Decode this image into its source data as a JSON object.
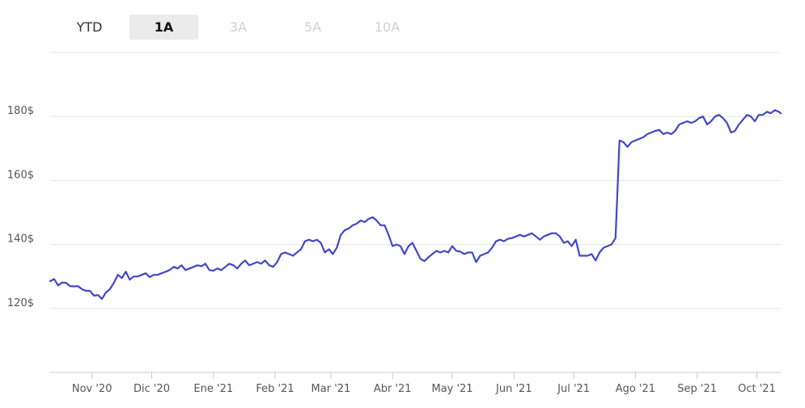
{
  "range_selector": {
    "buttons": [
      {
        "label": "YTD",
        "state": "enabled"
      },
      {
        "label": "1A",
        "state": "active"
      },
      {
        "label": "3A",
        "state": "disabled"
      },
      {
        "label": "5A",
        "state": "disabled"
      },
      {
        "label": "10A",
        "state": "disabled"
      }
    ]
  },
  "chart_data": {
    "type": "line",
    "title": "",
    "xlabel": "",
    "ylabel": "",
    "grid": true,
    "line_color": "#4347c4",
    "ylim": [
      100,
      200
    ],
    "y_ticks": [
      {
        "value": 120,
        "label": "120$"
      },
      {
        "value": 140,
        "label": "140$"
      },
      {
        "value": 160,
        "label": "160$"
      },
      {
        "value": 180,
        "label": "180$"
      }
    ],
    "x_ticks": [
      {
        "date": "2020-11-01",
        "label": "Nov '20"
      },
      {
        "date": "2020-12-01",
        "label": "Dic '20"
      },
      {
        "date": "2021-01-01",
        "label": "Ene '21"
      },
      {
        "date": "2021-02-01",
        "label": "Feb '21"
      },
      {
        "date": "2021-03-01",
        "label": "Mar '21"
      },
      {
        "date": "2021-04-01",
        "label": "Abr '21"
      },
      {
        "date": "2021-05-01",
        "label": "May '21"
      },
      {
        "date": "2021-06-01",
        "label": "Jun '21"
      },
      {
        "date": "2021-07-01",
        "label": "Jul '21"
      },
      {
        "date": "2021-08-01",
        "label": "Ago '21"
      },
      {
        "date": "2021-09-01",
        "label": "Sep '21"
      },
      {
        "date": "2021-10-01",
        "label": "Oct '21"
      }
    ],
    "xlim": [
      "2020-10-11",
      "2021-10-13"
    ],
    "series": [
      {
        "points": [
          [
            "2020-10-11",
            128.5
          ],
          [
            "2020-10-13",
            129.2
          ],
          [
            "2020-10-15",
            127.2
          ],
          [
            "2020-10-17",
            128.1
          ],
          [
            "2020-10-19",
            128.0
          ],
          [
            "2020-10-21",
            127.0
          ],
          [
            "2020-10-23",
            126.9
          ],
          [
            "2020-10-25",
            127.0
          ],
          [
            "2020-10-27",
            126.0
          ],
          [
            "2020-10-29",
            125.5
          ],
          [
            "2020-10-31",
            125.5
          ],
          [
            "2020-11-02",
            124.0
          ],
          [
            "2020-11-04",
            124.2
          ],
          [
            "2020-11-06",
            123.0
          ],
          [
            "2020-11-08",
            125.0
          ],
          [
            "2020-11-10",
            126.0
          ],
          [
            "2020-11-12",
            128.0
          ],
          [
            "2020-11-14",
            130.5
          ],
          [
            "2020-11-16",
            129.5
          ],
          [
            "2020-11-18",
            131.5
          ],
          [
            "2020-11-20",
            129.0
          ],
          [
            "2020-11-22",
            130.0
          ],
          [
            "2020-11-24",
            130.0
          ],
          [
            "2020-11-26",
            130.5
          ],
          [
            "2020-11-28",
            131.0
          ],
          [
            "2020-11-30",
            129.8
          ],
          [
            "2020-12-02",
            130.5
          ],
          [
            "2020-12-04",
            130.5
          ],
          [
            "2020-12-06",
            131.0
          ],
          [
            "2020-12-08",
            131.5
          ],
          [
            "2020-12-10",
            132.0
          ],
          [
            "2020-12-12",
            133.0
          ],
          [
            "2020-12-14",
            132.5
          ],
          [
            "2020-12-16",
            133.5
          ],
          [
            "2020-12-18",
            132.0
          ],
          [
            "2020-12-20",
            132.5
          ],
          [
            "2020-12-22",
            133.0
          ],
          [
            "2020-12-24",
            133.5
          ],
          [
            "2020-12-26",
            133.2
          ],
          [
            "2020-12-28",
            134.0
          ],
          [
            "2020-12-30",
            132.0
          ],
          [
            "2021-01-01",
            131.8
          ],
          [
            "2021-01-03",
            132.5
          ],
          [
            "2021-01-05",
            132.0
          ],
          [
            "2021-01-07",
            133.0
          ],
          [
            "2021-01-09",
            134.0
          ],
          [
            "2021-01-11",
            133.5
          ],
          [
            "2021-01-13",
            132.5
          ],
          [
            "2021-01-15",
            134.0
          ],
          [
            "2021-01-17",
            135.0
          ],
          [
            "2021-01-19",
            133.5
          ],
          [
            "2021-01-21",
            134.0
          ],
          [
            "2021-01-23",
            134.5
          ],
          [
            "2021-01-25",
            134.0
          ],
          [
            "2021-01-27",
            135.0
          ],
          [
            "2021-01-29",
            133.5
          ],
          [
            "2021-01-31",
            133.0
          ],
          [
            "2021-02-02",
            134.5
          ],
          [
            "2021-02-04",
            137.0
          ],
          [
            "2021-02-06",
            137.5
          ],
          [
            "2021-02-08",
            137.0
          ],
          [
            "2021-02-10",
            136.5
          ],
          [
            "2021-02-12",
            137.5
          ],
          [
            "2021-02-14",
            138.5
          ],
          [
            "2021-02-16",
            141.0
          ],
          [
            "2021-02-18",
            141.5
          ],
          [
            "2021-02-20",
            141.0
          ],
          [
            "2021-02-22",
            141.5
          ],
          [
            "2021-02-24",
            140.5
          ],
          [
            "2021-02-26",
            137.5
          ],
          [
            "2021-02-28",
            138.5
          ],
          [
            "2021-03-02",
            137.0
          ],
          [
            "2021-03-04",
            139.0
          ],
          [
            "2021-03-06",
            143.0
          ],
          [
            "2021-03-08",
            144.5
          ],
          [
            "2021-03-10",
            145.0
          ],
          [
            "2021-03-12",
            146.0
          ],
          [
            "2021-03-14",
            146.5
          ],
          [
            "2021-03-16",
            147.5
          ],
          [
            "2021-03-18",
            147.0
          ],
          [
            "2021-03-20",
            148.0
          ],
          [
            "2021-03-22",
            148.5
          ],
          [
            "2021-03-24",
            147.5
          ],
          [
            "2021-03-26",
            146.0
          ],
          [
            "2021-03-28",
            146.0
          ],
          [
            "2021-03-30",
            143.0
          ],
          [
            "2021-04-01",
            139.5
          ],
          [
            "2021-04-03",
            140.0
          ],
          [
            "2021-04-05",
            139.5
          ],
          [
            "2021-04-07",
            137.0
          ],
          [
            "2021-04-09",
            139.5
          ],
          [
            "2021-04-11",
            140.5
          ],
          [
            "2021-04-13",
            138.0
          ],
          [
            "2021-04-15",
            135.5
          ],
          [
            "2021-04-17",
            134.8
          ],
          [
            "2021-04-19",
            136.0
          ],
          [
            "2021-04-21",
            137.0
          ],
          [
            "2021-04-23",
            138.0
          ],
          [
            "2021-04-25",
            137.5
          ],
          [
            "2021-04-27",
            138.0
          ],
          [
            "2021-04-29",
            137.5
          ],
          [
            "2021-05-01",
            139.5
          ],
          [
            "2021-05-03",
            138.0
          ],
          [
            "2021-05-05",
            137.8
          ],
          [
            "2021-05-07",
            137.0
          ],
          [
            "2021-05-09",
            137.5
          ],
          [
            "2021-05-11",
            137.5
          ],
          [
            "2021-05-13",
            134.5
          ],
          [
            "2021-05-15",
            136.5
          ],
          [
            "2021-05-17",
            137.0
          ],
          [
            "2021-05-19",
            137.5
          ],
          [
            "2021-05-21",
            139.0
          ],
          [
            "2021-05-23",
            141.0
          ],
          [
            "2021-05-25",
            141.5
          ],
          [
            "2021-05-27",
            141.0
          ],
          [
            "2021-05-29",
            141.8
          ],
          [
            "2021-05-31",
            142.0
          ],
          [
            "2021-06-02",
            142.5
          ],
          [
            "2021-06-04",
            143.0
          ],
          [
            "2021-06-06",
            142.5
          ],
          [
            "2021-06-08",
            143.0
          ],
          [
            "2021-06-10",
            143.5
          ],
          [
            "2021-06-12",
            142.5
          ],
          [
            "2021-06-14",
            141.5
          ],
          [
            "2021-06-16",
            142.5
          ],
          [
            "2021-06-18",
            143.0
          ],
          [
            "2021-06-20",
            143.5
          ],
          [
            "2021-06-22",
            143.5
          ],
          [
            "2021-06-24",
            142.5
          ],
          [
            "2021-06-26",
            140.5
          ],
          [
            "2021-06-28",
            141.0
          ],
          [
            "2021-06-30",
            139.5
          ],
          [
            "2021-07-02",
            141.5
          ],
          [
            "2021-07-04",
            136.5
          ],
          [
            "2021-07-06",
            136.5
          ],
          [
            "2021-07-08",
            136.5
          ],
          [
            "2021-07-10",
            137.0
          ],
          [
            "2021-07-12",
            135.0
          ],
          [
            "2021-07-14",
            137.5
          ],
          [
            "2021-07-16",
            139.0
          ],
          [
            "2021-07-18",
            139.5
          ],
          [
            "2021-07-20",
            140.0
          ],
          [
            "2021-07-22",
            142.0
          ],
          [
            "2021-07-24",
            172.5
          ],
          [
            "2021-07-26",
            172.0
          ],
          [
            "2021-07-28",
            170.5
          ],
          [
            "2021-07-30",
            172.0
          ],
          [
            "2021-08-01",
            172.5
          ],
          [
            "2021-08-03",
            173.0
          ],
          [
            "2021-08-05",
            173.5
          ],
          [
            "2021-08-07",
            174.5
          ],
          [
            "2021-08-09",
            175.0
          ],
          [
            "2021-08-11",
            175.5
          ],
          [
            "2021-08-13",
            175.8
          ],
          [
            "2021-08-15",
            174.5
          ],
          [
            "2021-08-17",
            175.0
          ],
          [
            "2021-08-19",
            174.5
          ],
          [
            "2021-08-21",
            175.5
          ],
          [
            "2021-08-23",
            177.5
          ],
          [
            "2021-08-25",
            178.0
          ],
          [
            "2021-08-27",
            178.5
          ],
          [
            "2021-08-29",
            178.0
          ],
          [
            "2021-08-31",
            178.5
          ],
          [
            "2021-09-02",
            179.5
          ],
          [
            "2021-09-04",
            180.0
          ],
          [
            "2021-09-06",
            177.5
          ],
          [
            "2021-09-08",
            178.5
          ],
          [
            "2021-09-10",
            180.0
          ],
          [
            "2021-09-12",
            180.5
          ],
          [
            "2021-09-14",
            179.5
          ],
          [
            "2021-09-16",
            178.0
          ],
          [
            "2021-09-18",
            175.0
          ],
          [
            "2021-09-20",
            175.5
          ],
          [
            "2021-09-22",
            177.5
          ],
          [
            "2021-09-24",
            179.0
          ],
          [
            "2021-09-26",
            180.5
          ],
          [
            "2021-09-28",
            180.0
          ],
          [
            "2021-09-30",
            178.5
          ],
          [
            "2021-10-02",
            180.5
          ],
          [
            "2021-10-04",
            180.5
          ],
          [
            "2021-10-06",
            181.5
          ],
          [
            "2021-10-08",
            181.0
          ],
          [
            "2021-10-10",
            182.0
          ],
          [
            "2021-10-12",
            181.5
          ],
          [
            "2021-10-13",
            181.0
          ]
        ]
      }
    ]
  }
}
